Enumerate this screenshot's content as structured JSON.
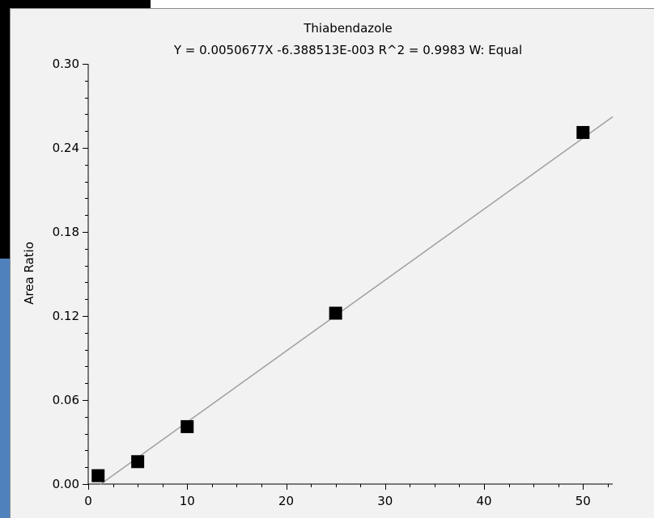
{
  "chart_data": {
    "type": "scatter",
    "title": "Thiabendazole",
    "subtitle": "Y = 0.0050677X -6.388513E-003 R^2 = 0.9983 W: Equal",
    "xlabel": "",
    "ylabel": "Area Ratio",
    "xlim": [
      0,
      53
    ],
    "ylim": [
      0,
      0.3
    ],
    "xticks": [
      "0",
      "10",
      "20",
      "30",
      "40",
      "50"
    ],
    "yticks": [
      "0.00",
      "0.06",
      "0.12",
      "0.18",
      "0.24",
      "0.30"
    ],
    "points": [
      {
        "x": 1,
        "y": 0.006
      },
      {
        "x": 5,
        "y": 0.016
      },
      {
        "x": 10,
        "y": 0.041
      },
      {
        "x": 25,
        "y": 0.122
      },
      {
        "x": 50,
        "y": 0.251
      }
    ],
    "fit": {
      "slope": 0.0050677,
      "intercept": -0.006388513
    },
    "colors": {
      "title": "#e8141c",
      "line": "#a0a0a0",
      "marker": "#000000",
      "axis": "#000000"
    }
  }
}
